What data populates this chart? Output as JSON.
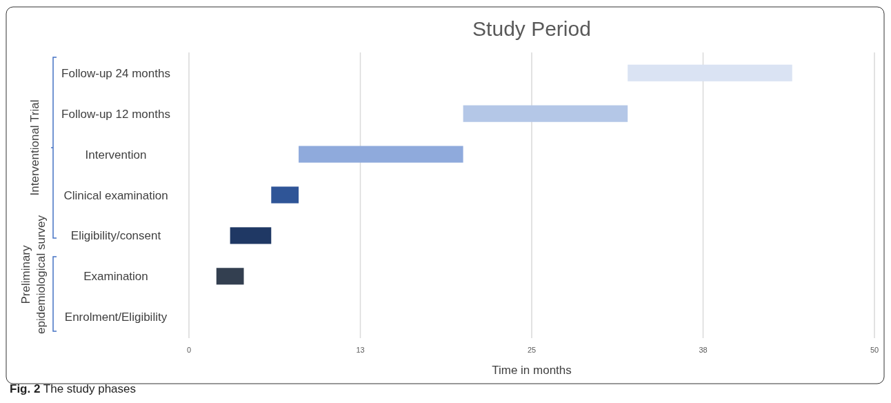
{
  "chart_data": {
    "type": "bar",
    "orientation": "horizontal",
    "title": "Study Period",
    "xlabel": "Time in months",
    "categories": [
      "Follow-up 24 months",
      "Follow-up 12 months",
      "Intervention",
      "Clinical examination",
      "Eligibility/consent",
      "Examination",
      "Enrolment/Eligibility"
    ],
    "base": [
      32,
      20,
      8,
      6,
      3,
      2,
      null
    ],
    "values": [
      12,
      12,
      12,
      2,
      3,
      2,
      null
    ],
    "colors": [
      "#dae3f3",
      "#b4c7e7",
      "#8faadc",
      "#2f5597",
      "#1f3864",
      "#333f50",
      null
    ],
    "xlim": [
      0,
      50
    ],
    "xticks": [
      0,
      {
        "value": 12.5,
        "label": "13"
      },
      25,
      {
        "value": 37.5,
        "label": "38"
      },
      50
    ],
    "grid": "x",
    "annotations": [
      "Interventional Trial",
      "Preliminary epidemiological survey",
      "Fig. 2 The study phases"
    ]
  }
}
